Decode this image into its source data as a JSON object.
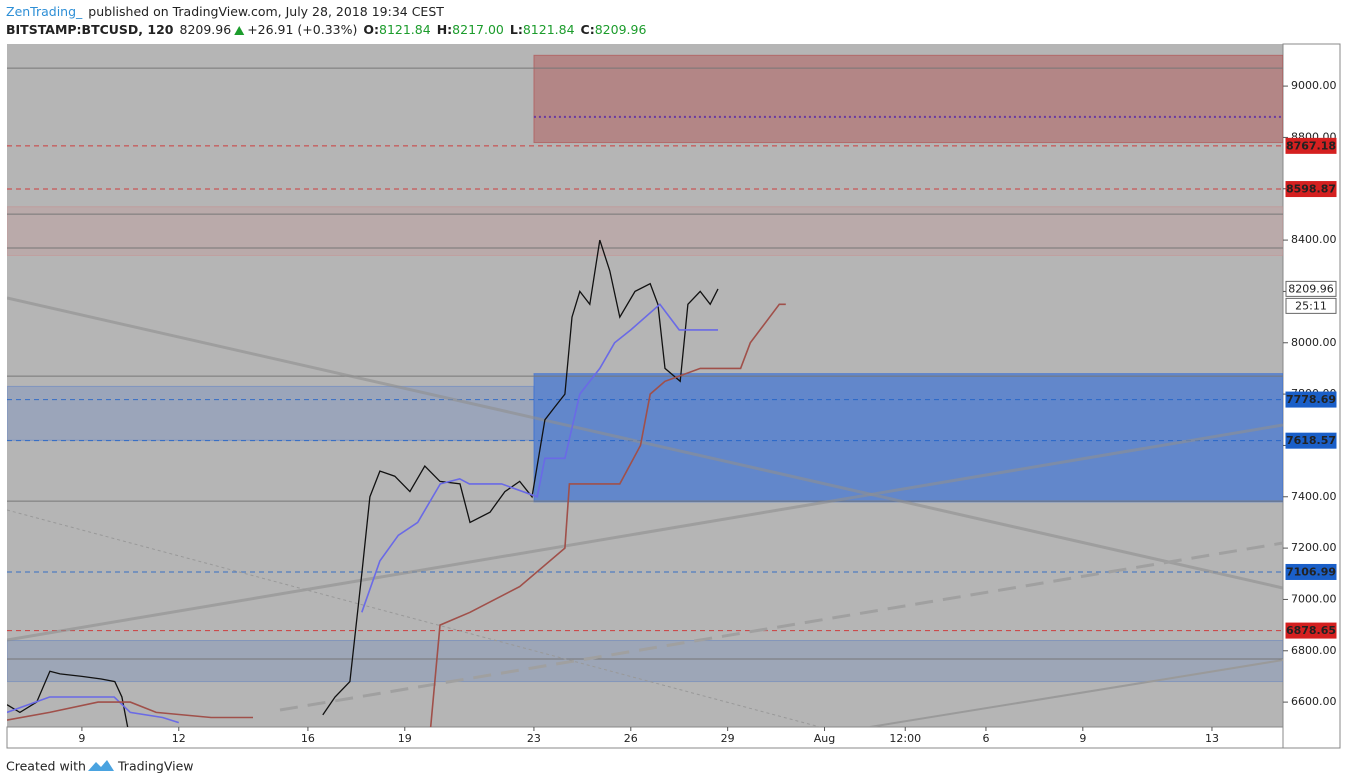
{
  "header": {
    "author": "ZenTrading_",
    "published": "published on TradingView.com, July 28, 2018 19:34 CEST",
    "symbol": "BITSTAMP:BTCUSD, 120",
    "last": "8209.96",
    "change": "+26.91 (+0.33%)",
    "open_label": "O:",
    "open": "8121.84",
    "high_label": "H:",
    "high": "8217.00",
    "low_label": "L:",
    "low": "8121.84",
    "close_label": "C:",
    "close": "8209.96"
  },
  "footer": {
    "created": "Created with",
    "brand": "TradingView"
  },
  "chart_data": {
    "type": "line",
    "xlim": [
      6.68,
      46.2
    ],
    "ylim": [
      6503,
      9164
    ],
    "xticks": [
      9,
      12,
      16,
      19,
      23,
      26,
      29,
      {
        "value": 32,
        "label": "Aug"
      },
      {
        "value": 34.5,
        "label": "12:00"
      },
      {
        "value": 37,
        "label": "6"
      },
      {
        "value": 40,
        "label": "9"
      },
      {
        "value": 44,
        "label": "13"
      }
    ],
    "yticks": [
      {
        "value": 6600,
        "label": "6600.00"
      },
      {
        "value": 6800,
        "label": "6800.00"
      },
      {
        "value": 7000,
        "label": "7000.00"
      },
      {
        "value": 7200,
        "label": "7200.00"
      },
      {
        "value": 7400,
        "label": "7400.00"
      },
      {
        "value": 7600,
        "label": "7600.00"
      },
      {
        "value": 7800,
        "label": "7800.00"
      },
      {
        "value": 8000,
        "label": "8000.00"
      },
      {
        "value": 8200,
        "label": "8200.00"
      },
      {
        "value": 8400,
        "label": "8400.00"
      },
      {
        "value": 8600,
        "label": "8600.00"
      },
      {
        "value": 8800,
        "label": "8800.00"
      },
      {
        "value": 9000,
        "label": "9000.00"
      }
    ],
    "zones": [
      {
        "from": 8780,
        "to": 9120,
        "start": 23,
        "color": "#b03a3a",
        "opacity": 0.38
      },
      {
        "from": 8340,
        "to": 8530,
        "color": "#c89090",
        "opacity": 0.28
      },
      {
        "from": 7620,
        "to": 7830,
        "end": 23,
        "color": "#5a7ec8",
        "opacity": 0.28
      },
      {
        "from": 7380,
        "to": 7880,
        "start": 23,
        "color": "#2f6ad8",
        "opacity": 0.62
      },
      {
        "from": 6680,
        "to": 6840,
        "color": "#6080c0",
        "opacity": 0.28
      }
    ],
    "levels": [
      9070,
      8501,
      8369,
      7870,
      7383,
      6768
    ],
    "dotted_level": {
      "value": 8880,
      "start": 23,
      "color": "#6a3aa0"
    },
    "price_lines": [
      {
        "value": 8767.18,
        "color": "#d42020"
      },
      {
        "value": 8598.87,
        "color": "#d42020"
      },
      {
        "value": 7778.69,
        "color": "#1a5fc8"
      },
      {
        "value": 7618.57,
        "color": "#1a5fc8"
      },
      {
        "value": 7106.99,
        "color": "#1a5fc8"
      },
      {
        "value": 6878.65,
        "color": "#d42020"
      }
    ],
    "last_price": 8209.96,
    "countdown": "25:11",
    "series": [
      {
        "color": "#111111",
        "x": [
          6.68,
          7.08,
          7.6,
          8.01,
          8.32,
          9.0,
          9.6,
          10.02,
          10.24,
          10.42,
          13,
          16.46,
          16.84,
          17.3,
          17.67,
          17.92,
          18.23,
          18.69,
          19.16,
          19.62,
          20.09,
          20.71,
          21.02,
          21.64,
          22.1,
          22.56,
          22.94,
          23.34,
          23.65,
          23.96,
          24.18,
          24.42,
          24.73,
          25.04,
          25.35,
          25.66,
          26.13,
          26.6,
          26.84,
          27.06,
          27.53,
          27.77,
          28.15,
          28.46,
          28.7
        ],
        "values": [
          6590,
          6560,
          6600,
          6720,
          6710,
          6700,
          6690,
          6680,
          6620,
          6500,
          null,
          6550,
          6620,
          6680,
          7100,
          7400,
          7500,
          7480,
          7420,
          7520,
          7460,
          7450,
          7300,
          7340,
          7420,
          7460,
          7400,
          7700,
          7750,
          7800,
          8100,
          8200,
          8150,
          8400,
          8280,
          8100,
          8200,
          8230,
          8150,
          7900,
          7850,
          8150,
          8200,
          8150,
          8209.96
        ]
      },
      {
        "color": "#6a6ae6",
        "x": [
          6.68,
          8.0,
          10.0,
          10.5,
          11.5,
          12.0,
          14,
          17.67,
          18.23,
          18.8,
          19.4,
          20.1,
          20.7,
          21.0,
          22.0,
          23.1,
          23.34,
          23.96,
          24.42,
          25.04,
          25.5,
          26.0,
          26.9,
          27.5,
          28.15,
          28.7
        ],
        "values": [
          6560,
          6620,
          6620,
          6560,
          6540,
          6520,
          null,
          6950,
          7150,
          7250,
          7300,
          7450,
          7470,
          7450,
          7450,
          7400,
          7550,
          7550,
          7800,
          7900,
          8000,
          8050,
          8150,
          8050,
          8050,
          8050
        ]
      },
      {
        "color": "#a0504a",
        "x": [
          6.68,
          8.0,
          9.5,
          10.5,
          11.3,
          13.0,
          14.3,
          17,
          19.8,
          20.09,
          21.02,
          22.56,
          23.96,
          24.1,
          25.66,
          26.3,
          26.6,
          27.06,
          28.15,
          29.4,
          29.7,
          30.6,
          30.8
        ],
        "values": [
          6530,
          6560,
          6600,
          6600,
          6560,
          6540,
          6540,
          null,
          6500,
          6900,
          6950,
          7050,
          7200,
          7450,
          7450,
          7600,
          7800,
          7850,
          7900,
          7900,
          8000,
          8150,
          8150
        ]
      }
    ]
  }
}
